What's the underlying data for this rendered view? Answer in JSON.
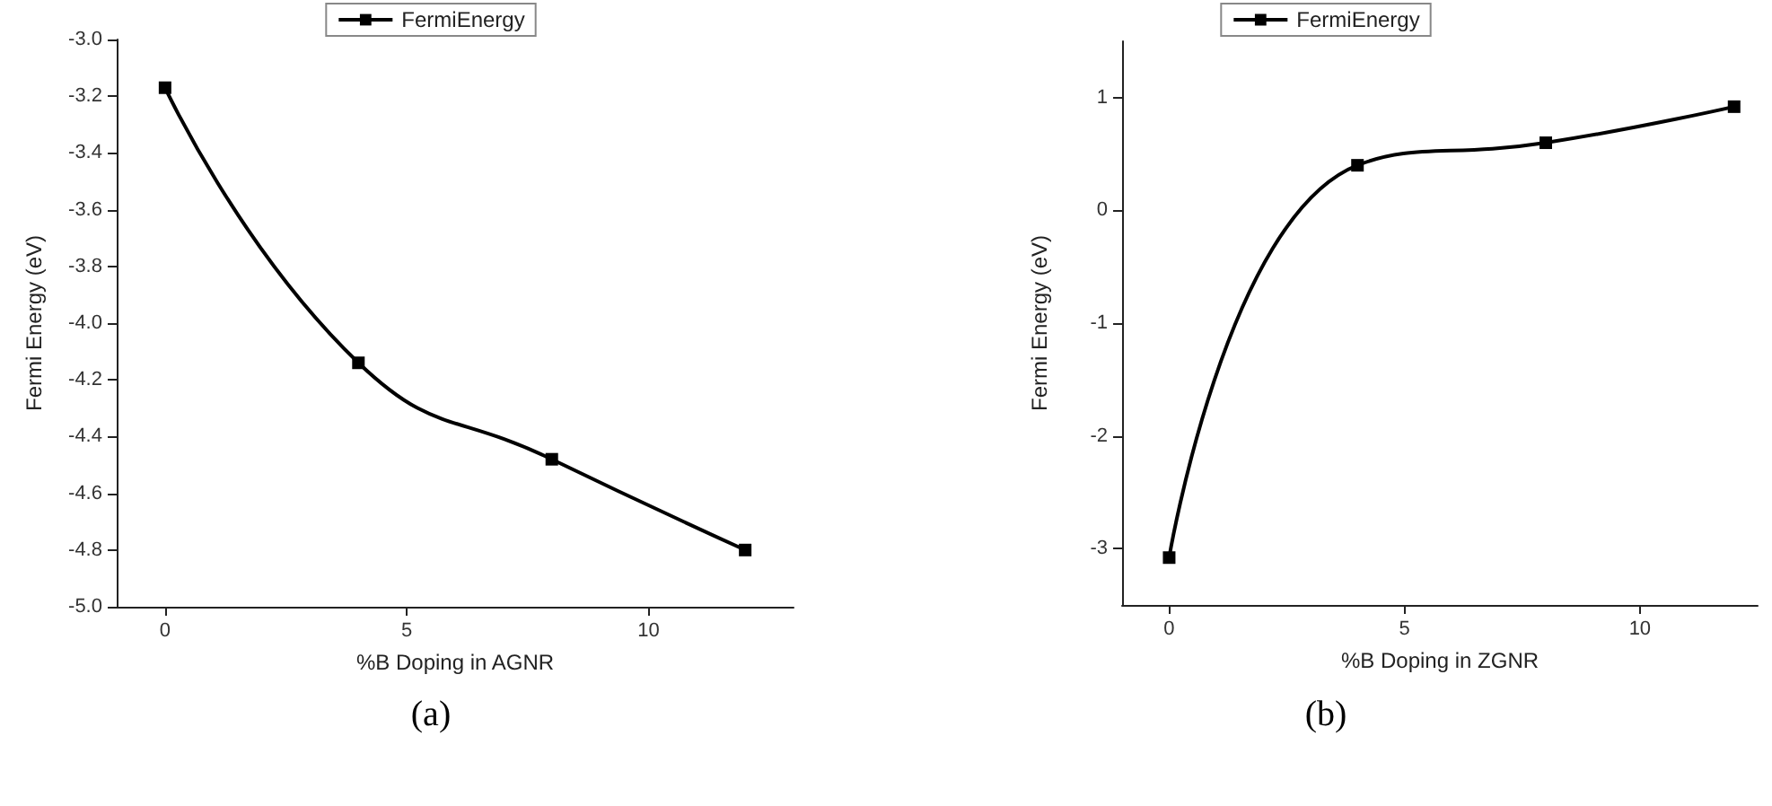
{
  "chart_data": [
    {
      "type": "line",
      "xlabel": "%B Doping in AGNR",
      "ylabel": "Fermi Energy (eV)",
      "x": [
        0,
        4,
        8,
        12
      ],
      "series": [
        {
          "name": "FermiEnergy",
          "color": "#000000",
          "values": [
            -3.17,
            -4.14,
            -4.48,
            -4.8
          ]
        }
      ],
      "xlim": [
        -1,
        13
      ],
      "xticks": [
        0,
        5,
        10
      ],
      "ylim": [
        -5.0,
        -3.0
      ],
      "yticks": [
        {
          "value": -5,
          "label": "-5.0"
        },
        -4.8,
        -4.6,
        -4.4,
        -4.2,
        {
          "value": -4,
          "label": "-4.0"
        },
        -3.8,
        -3.6,
        -3.4,
        -3.2,
        {
          "value": -3,
          "label": "-3.0"
        }
      ],
      "marker": "square",
      "line_style": "solid",
      "legend": "top",
      "grid": false,
      "annotations": [
        "(a)"
      ]
    },
    {
      "type": "line",
      "xlabel": "%B Doping in ZGNR",
      "ylabel": "Fermi Energy (eV)",
      "x": [
        0,
        4,
        8,
        12
      ],
      "series": [
        {
          "name": "FermiEnergy",
          "color": "#000000",
          "values": [
            -3.08,
            0.4,
            0.6,
            0.92
          ]
        }
      ],
      "xlim": [
        -1,
        12.5
      ],
      "xticks": [
        0,
        5,
        10
      ],
      "ylim": [
        -3.5,
        1.5
      ],
      "yticks": [
        -3,
        -2,
        -1,
        0,
        1
      ],
      "marker": "square",
      "line_style": "solid",
      "legend": "top",
      "grid": false,
      "annotations": [
        "(b)"
      ]
    }
  ]
}
